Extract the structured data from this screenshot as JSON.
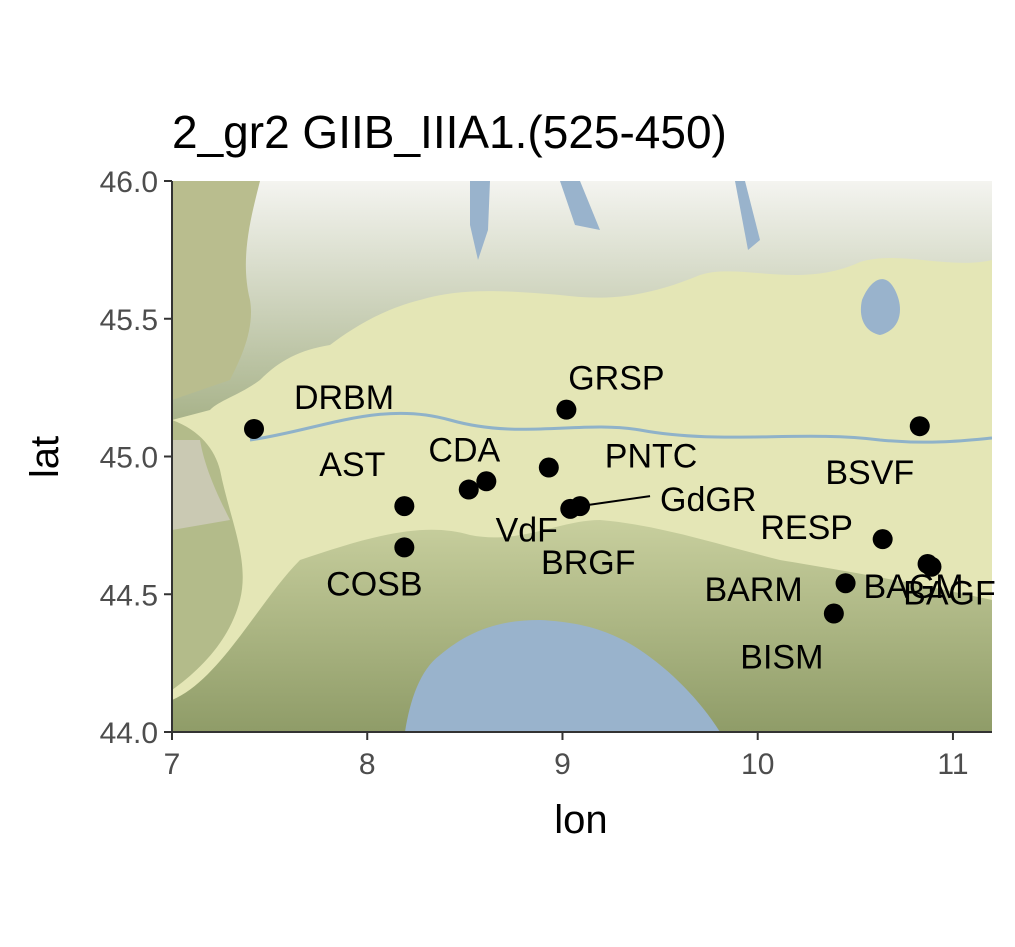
{
  "title": "2_gr2 GIIB_IIIA1.(525-450)",
  "chart_data": {
    "type": "scatter",
    "title": "2_gr2 GIIB_IIIA1.(525-450)",
    "xlabel": "lon",
    "ylabel": "lat",
    "xlim": [
      7.0,
      11.2
    ],
    "ylim": [
      44.0,
      46.0
    ],
    "xticks": [
      "7",
      "8",
      "9",
      "10",
      "11"
    ],
    "yticks": [
      "44.0",
      "44.5",
      "45.0",
      "45.5",
      "46.0"
    ],
    "basemap": "terrain",
    "point_color": "#000000",
    "points": [
      {
        "label": "DRBM",
        "lon": 7.42,
        "lat": 45.1
      },
      {
        "label": "AST",
        "lon": 8.19,
        "lat": 44.82
      },
      {
        "label": "COSB",
        "lon": 8.19,
        "lat": 44.67
      },
      {
        "label": "CDA",
        "lon": 8.61,
        "lat": 44.91
      },
      {
        "label": "VdF",
        "lon": 8.52,
        "lat": 44.88
      },
      {
        "label": "GRSP",
        "lon": 9.02,
        "lat": 45.17
      },
      {
        "label": "PNTC",
        "lon": 8.93,
        "lat": 44.96
      },
      {
        "label": "BRGF",
        "lon": 9.04,
        "lat": 44.81
      },
      {
        "label": "GdGR",
        "lon": 9.09,
        "lat": 44.82
      },
      {
        "label": "BSVF",
        "lon": 10.83,
        "lat": 45.11
      },
      {
        "label": "RESP",
        "lon": 10.64,
        "lat": 44.7
      },
      {
        "label": "BAGM",
        "lon": 10.87,
        "lat": 44.61
      },
      {
        "label": "BAGF",
        "lon": 10.89,
        "lat": 44.6
      },
      {
        "label": "BARM",
        "lon": 10.45,
        "lat": 44.54
      },
      {
        "label": "BISM",
        "lon": 10.39,
        "lat": 44.43
      }
    ]
  }
}
